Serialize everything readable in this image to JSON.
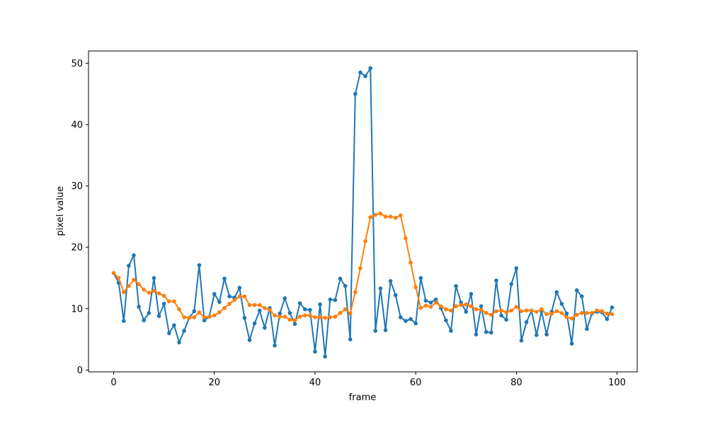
{
  "chart_data": {
    "type": "line",
    "title": "",
    "xlabel": "frame",
    "ylabel": "pixel value",
    "xlim": [
      -5,
      104
    ],
    "ylim": [
      -0.3,
      52
    ],
    "grid": false,
    "xticks": [
      0,
      20,
      40,
      60,
      80,
      100
    ],
    "yticks": [
      0,
      10,
      20,
      30,
      40,
      50
    ],
    "x_start": 0,
    "series": [
      {
        "color": "#1f77b4",
        "marker": "circle",
        "values": [
          15.8,
          14.2,
          8.0,
          17.0,
          18.7,
          10.3,
          8.1,
          9.3,
          15.0,
          8.8,
          10.8,
          6.0,
          7.3,
          4.5,
          6.4,
          8.5,
          9.6,
          17.1,
          8.1,
          8.7,
          12.4,
          11.1,
          14.9,
          12.0,
          11.8,
          13.4,
          8.5,
          4.9,
          7.6,
          9.7,
          6.9,
          10.1,
          4.0,
          9.2,
          11.7,
          9.3,
          7.5,
          10.9,
          9.9,
          9.8,
          3.0,
          10.7,
          2.2,
          11.5,
          11.4,
          14.9,
          13.7,
          5.0,
          45.0,
          48.5,
          47.9,
          49.2,
          6.4,
          13.3,
          6.5,
          14.5,
          12.2,
          8.6,
          8.0,
          8.3,
          7.6,
          15.0,
          11.3,
          11.0,
          11.5,
          10.1,
          8.1,
          6.4,
          13.7,
          11.0,
          9.5,
          12.4,
          5.8,
          10.4,
          6.2,
          6.1,
          14.6,
          8.9,
          8.2,
          14.0,
          16.6,
          4.8,
          7.8,
          9.7,
          5.7,
          9.6,
          5.8,
          9.5,
          12.7,
          10.8,
          9.2,
          4.3,
          13.0,
          12.0,
          6.7,
          9.2,
          9.5,
          9.4,
          8.3,
          10.2
        ]
      },
      {
        "color": "#ff7f0e",
        "marker": "circle",
        "values": [
          15.8,
          15.0,
          12.7,
          13.7,
          14.7,
          14.0,
          13.1,
          12.6,
          12.9,
          12.5,
          12.1,
          11.2,
          11.2,
          9.9,
          8.6,
          8.5,
          8.6,
          9.4,
          8.6,
          8.7,
          8.9,
          9.4,
          10.1,
          10.8,
          11.4,
          12.0,
          12.0,
          10.6,
          10.6,
          10.6,
          10.1,
          9.8,
          8.9,
          8.7,
          8.7,
          8.2,
          8.1,
          8.7,
          8.9,
          8.9,
          8.6,
          8.6,
          8.5,
          8.6,
          8.7,
          9.3,
          9.9,
          9.2,
          12.7,
          16.6,
          21.0,
          24.9,
          25.3,
          25.5,
          25.0,
          25.0,
          24.8,
          25.2,
          21.5,
          17.5,
          13.5,
          10.1,
          10.5,
          10.3,
          11.0,
          10.4,
          9.9,
          9.7,
          10.4,
          10.6,
          10.7,
          10.4,
          9.9,
          9.8,
          9.3,
          9.0,
          9.6,
          9.7,
          9.4,
          9.7,
          10.3,
          9.6,
          9.7,
          9.7,
          9.5,
          9.9,
          9.1,
          9.2,
          9.6,
          9.3,
          8.6,
          8.4,
          9.0,
          9.3,
          9.3,
          9.3,
          9.7,
          9.6,
          9.2,
          9.1
        ]
      }
    ]
  }
}
